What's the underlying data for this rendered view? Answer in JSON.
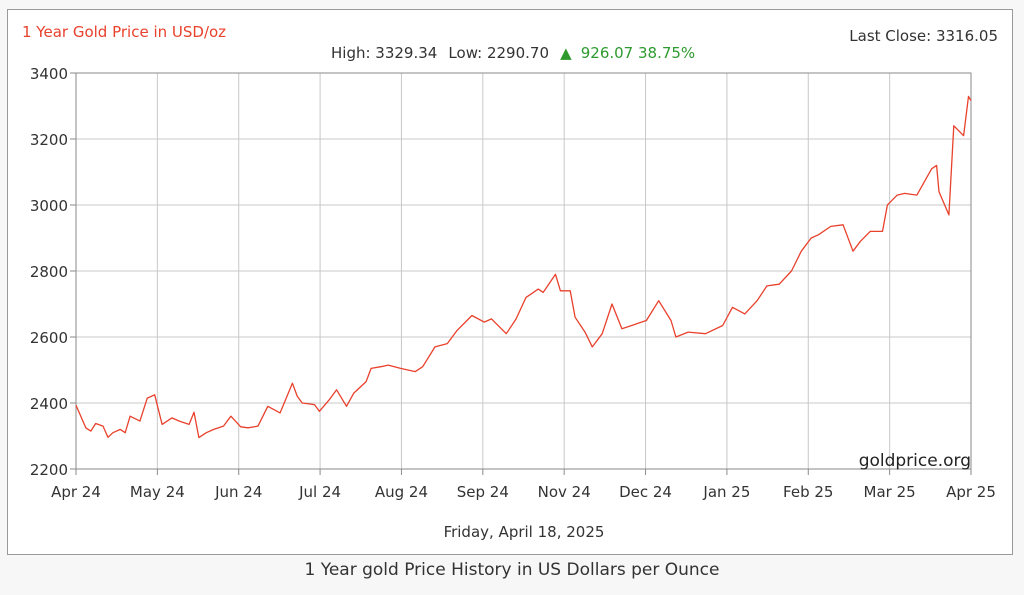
{
  "chart_data": {
    "type": "line",
    "title": "1 Year Gold Price in USD/oz",
    "last_close_label": "Last Close: 3316.05",
    "stats": {
      "high_text": "High: 3329.34",
      "low_text": "Low: 2290.70",
      "change_arrow": "▲",
      "change_text": "926.07 38.75%"
    },
    "watermark": "goldprice.org",
    "date_label": "Friday, April 18, 2025",
    "ylim": [
      2200,
      3400
    ],
    "yticks": [
      2200,
      2400,
      2600,
      2800,
      3000,
      3200,
      3400
    ],
    "xticks": [
      "Apr 24",
      "May 24",
      "Jun 24",
      "Jul 24",
      "Aug 24",
      "Sep 24",
      "Nov 24",
      "Dec 24",
      "Jan 25",
      "Feb 25",
      "Mar 25",
      "Apr 25"
    ],
    "grid": true,
    "line_color": "#e8412c",
    "x": [
      "2024-04-18",
      "2024-04-22",
      "2024-04-24",
      "2024-04-26",
      "2024-04-29",
      "2024-05-01",
      "2024-05-03",
      "2024-05-06",
      "2024-05-08",
      "2024-05-10",
      "2024-05-14",
      "2024-05-17",
      "2024-05-20",
      "2024-05-23",
      "2024-05-27",
      "2024-05-30",
      "2024-06-03",
      "2024-06-05",
      "2024-06-07",
      "2024-06-10",
      "2024-06-13",
      "2024-06-17",
      "2024-06-20",
      "2024-06-24",
      "2024-06-27",
      "2024-07-01",
      "2024-07-05",
      "2024-07-10",
      "2024-07-15",
      "2024-07-17",
      "2024-07-19",
      "2024-07-24",
      "2024-07-26",
      "2024-07-30",
      "2024-08-02",
      "2024-08-06",
      "2024-08-09",
      "2024-08-14",
      "2024-08-16",
      "2024-08-20",
      "2024-08-23",
      "2024-08-28",
      "2024-09-03",
      "2024-09-06",
      "2024-09-11",
      "2024-09-16",
      "2024-09-20",
      "2024-09-26",
      "2024-10-01",
      "2024-10-04",
      "2024-10-10",
      "2024-10-14",
      "2024-10-18",
      "2024-10-23",
      "2024-10-25",
      "2024-10-30",
      "2024-11-01",
      "2024-11-05",
      "2024-11-07",
      "2024-11-11",
      "2024-11-14",
      "2024-11-18",
      "2024-11-22",
      "2024-11-26",
      "2024-12-02",
      "2024-12-06",
      "2024-12-11",
      "2024-12-16",
      "2024-12-18",
      "2024-12-23",
      "2024-12-30",
      "2025-01-06",
      "2025-01-10",
      "2025-01-15",
      "2025-01-20",
      "2025-01-24",
      "2025-01-29",
      "2025-02-03",
      "2025-02-07",
      "2025-02-11",
      "2025-02-14",
      "2025-02-19",
      "2025-02-24",
      "2025-02-28",
      "2025-03-03",
      "2025-03-07",
      "2025-03-12",
      "2025-03-14",
      "2025-03-18",
      "2025-03-21",
      "2025-03-26",
      "2025-04-01",
      "2025-04-03",
      "2025-04-04",
      "2025-04-08",
      "2025-04-10",
      "2025-04-14",
      "2025-04-16",
      "2025-04-17"
    ],
    "values": [
      2393,
      2325,
      2315,
      2338,
      2330,
      2296,
      2310,
      2320,
      2310,
      2360,
      2345,
      2415,
      2425,
      2335,
      2355,
      2345,
      2335,
      2372,
      2295,
      2310,
      2320,
      2330,
      2360,
      2328,
      2325,
      2330,
      2390,
      2370,
      2460,
      2420,
      2400,
      2395,
      2375,
      2410,
      2440,
      2390,
      2430,
      2465,
      2505,
      2510,
      2515,
      2505,
      2495,
      2510,
      2570,
      2580,
      2620,
      2665,
      2645,
      2655,
      2610,
      2655,
      2720,
      2745,
      2735,
      2790,
      2740,
      2740,
      2660,
      2615,
      2570,
      2610,
      2700,
      2625,
      2640,
      2650,
      2710,
      2650,
      2600,
      2615,
      2610,
      2635,
      2690,
      2670,
      2710,
      2755,
      2760,
      2800,
      2860,
      2900,
      2910,
      2935,
      2940,
      2860,
      2890,
      2920,
      2920,
      3000,
      3030,
      3035,
      3030,
      3110,
      3120,
      3040,
      2970,
      3240,
      3210,
      3329,
      3316
    ]
  },
  "caption": "1 Year gold Price History in US Dollars per Ounce"
}
